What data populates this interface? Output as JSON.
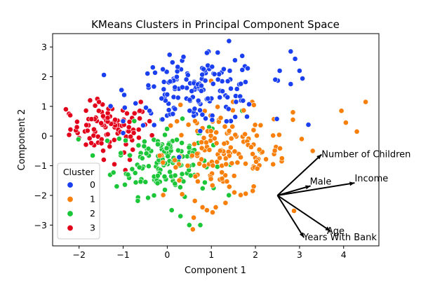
{
  "chart_data": {
    "type": "scatter",
    "title": "KMeans Clusters in Principal Component Space",
    "xlabel": "Component 1",
    "ylabel": "Component 2",
    "xlim": [
      -2.6,
      4.8
    ],
    "ylim": [
      -3.7,
      3.45
    ],
    "xticks": [
      -2,
      -1,
      0,
      1,
      2,
      3,
      4
    ],
    "yticks": [
      -3,
      -2,
      -1,
      0,
      1,
      2,
      3
    ],
    "xtick_labels": [
      "−2",
      "−1",
      "0",
      "1",
      "2",
      "3",
      "4"
    ],
    "ytick_labels": [
      "−3",
      "−2",
      "−1",
      "0",
      "1",
      "2",
      "3"
    ],
    "grid": false,
    "legend": {
      "title": "Cluster",
      "placement": "lower-left",
      "entries": [
        {
          "label": "0",
          "color": "#1a3ff0"
        },
        {
          "label": "1",
          "color": "#f87f0a"
        },
        {
          "label": "2",
          "color": "#1bc638"
        },
        {
          "label": "3",
          "color": "#e3001a"
        }
      ]
    },
    "series": [
      {
        "name": "0",
        "color": "#1a3ff0",
        "center": [
          0.7,
          1.5
        ],
        "spread": [
          0.75,
          0.55
        ],
        "count": 150,
        "fixed_points": [
          [
            1.4,
            3.2
          ],
          [
            0.9,
            2.8
          ],
          [
            1.7,
            2.7
          ],
          [
            2.8,
            2.85
          ],
          [
            2.9,
            2.6
          ],
          [
            3.0,
            2.2
          ],
          [
            3.2,
            0.38
          ],
          [
            2.8,
            1.75
          ],
          [
            2.45,
            1.9
          ],
          [
            2.55,
            2.2
          ],
          [
            -1.0,
            0.5
          ],
          [
            -0.4,
            0.85
          ],
          [
            -0.1,
            2.25
          ]
        ]
      },
      {
        "name": "1",
        "color": "#f87f0a",
        "center": [
          1.3,
          -0.6
        ],
        "spread": [
          0.7,
          0.75
        ],
        "count": 150,
        "fixed_points": [
          [
            4.5,
            1.15
          ],
          [
            3.95,
            0.85
          ],
          [
            4.05,
            0.45
          ],
          [
            4.3,
            0.15
          ],
          [
            3.3,
            -0.5
          ],
          [
            2.85,
            0.8
          ],
          [
            2.85,
            0.55
          ],
          [
            3.05,
            -0.1
          ],
          [
            2.6,
            -0.75
          ],
          [
            2.4,
            -0.95
          ],
          [
            0.8,
            -2.4
          ],
          [
            1.1,
            -2.4
          ],
          [
            0.6,
            -2.75
          ],
          [
            0.9,
            -2.5
          ],
          [
            0.3,
            1.05
          ]
        ]
      },
      {
        "name": "2",
        "color": "#1bc638",
        "center": [
          -0.1,
          -0.8
        ],
        "spread": [
          0.55,
          0.6
        ],
        "count": 150,
        "fixed_points": [
          [
            0.5,
            -3.0
          ],
          [
            0.75,
            -3.0
          ],
          [
            0.3,
            -2.7
          ],
          [
            0.1,
            -2.5
          ],
          [
            -0.3,
            -2.0
          ],
          [
            2.1,
            -0.5
          ],
          [
            1.7,
            0.85
          ],
          [
            1.05,
            -1.75
          ],
          [
            0.95,
            0.3
          ]
        ]
      },
      {
        "name": "3",
        "color": "#e3001a",
        "center": [
          -1.3,
          0.25
        ],
        "spread": [
          0.45,
          0.4
        ],
        "count": 95,
        "fixed_points": [
          [
            -2.3,
            0.9
          ],
          [
            -2.2,
            0.7
          ],
          [
            -1.75,
            1.2
          ],
          [
            -1.55,
            1.15
          ],
          [
            -1.2,
            -0.95
          ],
          [
            -0.95,
            -1.15
          ],
          [
            -0.85,
            -0.8
          ],
          [
            -0.6,
            1.15
          ],
          [
            -0.4,
            0.5
          ],
          [
            -2.05,
            0.3
          ]
        ]
      }
    ],
    "loadings": {
      "origin": [
        2.5,
        -2.0
      ],
      "vectors": [
        {
          "label": "Number of Children",
          "end": [
            3.5,
            -0.62
          ]
        },
        {
          "label": "Male",
          "end": [
            3.25,
            -1.68
          ]
        },
        {
          "label": "Income",
          "end": [
            4.25,
            -1.58
          ]
        },
        {
          "label": "Age",
          "end": [
            3.7,
            -3.2
          ]
        },
        {
          "label": "Years With Bank",
          "end": [
            3.1,
            -3.42
          ]
        }
      ]
    }
  }
}
